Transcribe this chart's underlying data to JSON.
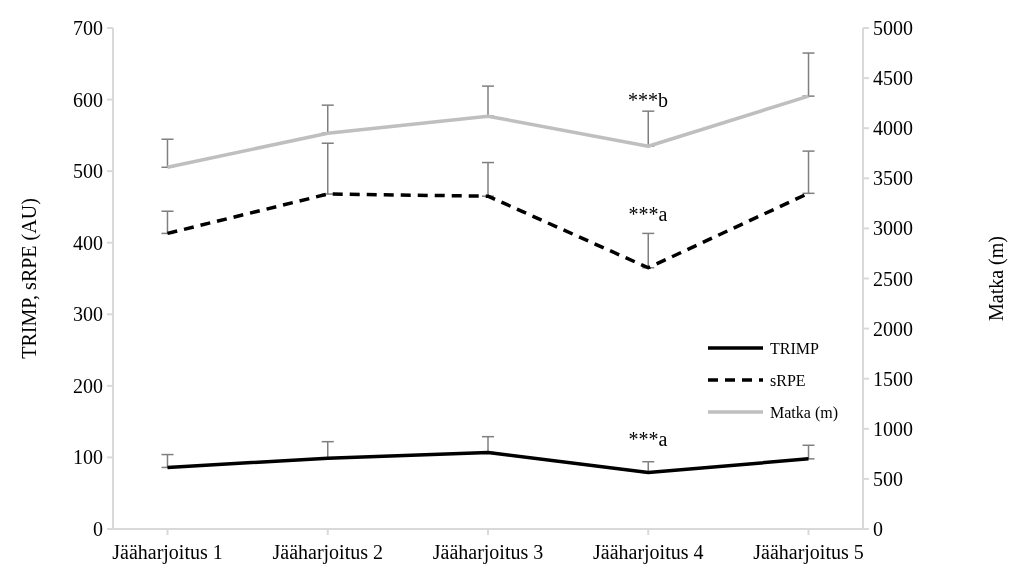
{
  "chart_data": {
    "type": "line",
    "xlabel": null,
    "ylabel": "TRIMP, sRPE (AU)",
    "y2label": "Matka (m)",
    "categories": [
      "Jääharjoitus 1",
      "Jääharjoitus 2",
      "Jääharjoitus 3",
      "Jääharjoitus 4",
      "Jääharjoitus 5"
    ],
    "series": [
      {
        "name": "TRIMP",
        "color": "#000000",
        "line_style": "solid",
        "values": [
          86,
          99,
          107,
          79,
          98
        ],
        "errors": [
          [
            86,
            104
          ],
          [
            99,
            122
          ],
          [
            107,
            129
          ],
          [
            79,
            94
          ],
          [
            98,
            117
          ]
        ]
      },
      {
        "name": "sRPE",
        "color": "#000000",
        "line_style": "dashed",
        "values": [
          413,
          468,
          465,
          365,
          469
        ],
        "errors": [
          [
            413,
            444
          ],
          [
            468,
            539
          ],
          [
            465,
            512
          ],
          [
            365,
            413
          ],
          [
            469,
            528
          ]
        ]
      },
      {
        "name": "Matka (m)",
        "color": "#bfbfbf",
        "line_style": "solid",
        "axis": "y2",
        "values": [
          3610,
          3950,
          4120,
          3820,
          4320
        ],
        "errors": [
          [
            3610,
            3890
          ],
          [
            3950,
            4230
          ],
          [
            4120,
            4420
          ],
          [
            3820,
            4170
          ],
          [
            4320,
            4750
          ]
        ]
      }
    ],
    "ylim": [
      0,
      700
    ],
    "yticks": [
      0,
      100,
      200,
      300,
      400,
      500,
      600,
      700
    ],
    "y2lim": [
      0,
      5000
    ],
    "y2ticks": [
      0,
      500,
      1000,
      1500,
      2000,
      2500,
      3000,
      3500,
      4000,
      4500,
      5000
    ],
    "marker": "none",
    "grid": false,
    "legend": "right",
    "annotations": [
      "***b",
      "***a",
      "***a"
    ]
  }
}
